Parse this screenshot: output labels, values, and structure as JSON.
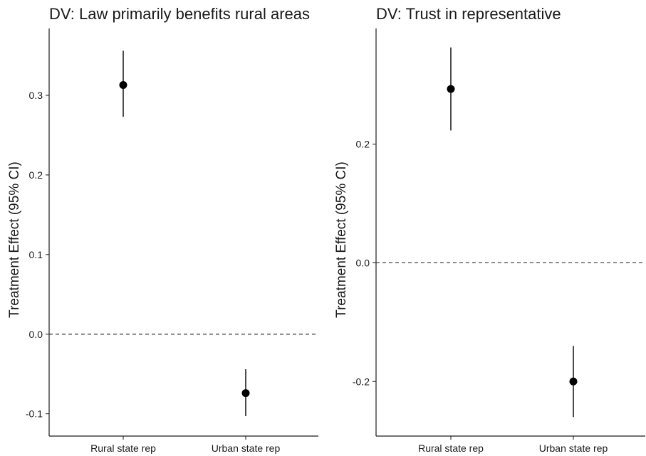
{
  "chart_data": [
    {
      "type": "scatter",
      "title": "DV: Law primarily benefits rural areas",
      "xlabel": "",
      "ylabel": "Treatment Effect (95% CI)",
      "categories": [
        "Rural state rep",
        "Urban state rep"
      ],
      "y_ticks": [
        -0.1,
        0.0,
        0.1,
        0.2,
        0.3
      ],
      "y_tick_labels": [
        "-0.1",
        "0.0",
        "0.1",
        "0.2",
        "0.3"
      ],
      "ylim": [
        -0.128,
        0.384
      ],
      "reference_line": 0.0,
      "points": [
        {
          "category": "Rural state rep",
          "estimate": 0.313,
          "ci_low": 0.273,
          "ci_high": 0.356
        },
        {
          "category": "Urban state rep",
          "estimate": -0.074,
          "ci_low": -0.103,
          "ci_high": -0.044
        }
      ],
      "grid": false
    },
    {
      "type": "scatter",
      "title": "DV: Trust in representative",
      "xlabel": "",
      "ylabel": "Treatment Effect (95% CI)",
      "categories": [
        "Rural state rep",
        "Urban state rep"
      ],
      "y_ticks": [
        -0.2,
        0.0,
        0.2
      ],
      "y_tick_labels": [
        "-0.2",
        "0.0",
        "0.2"
      ],
      "ylim": [
        -0.292,
        0.395
      ],
      "reference_line": 0.0,
      "points": [
        {
          "category": "Rural state rep",
          "estimate": 0.293,
          "ci_low": 0.223,
          "ci_high": 0.363
        },
        {
          "category": "Urban state rep",
          "estimate": -0.2,
          "ci_low": -0.26,
          "ci_high": -0.14
        }
      ],
      "grid": false
    }
  ]
}
